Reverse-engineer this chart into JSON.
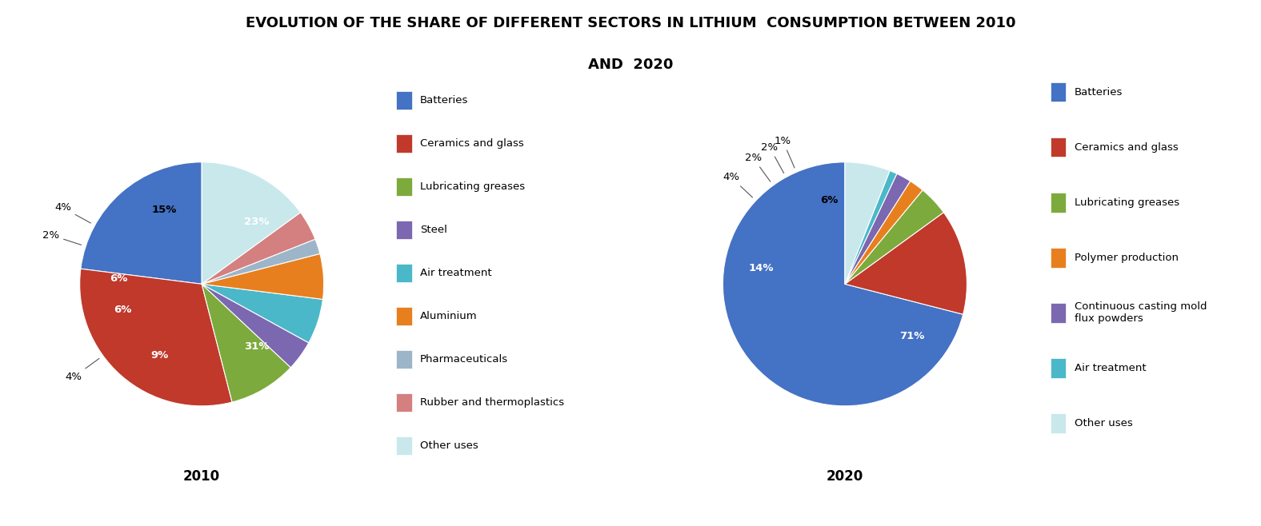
{
  "title_line1": "EVOLUTION OF THE SHARE OF DIFFERENT SECTORS IN LITHIUM  CONSUMPTION BETWEEN 2010",
  "title_line2": "AND  2020",
  "pie2010": {
    "labels": [
      "Batteries",
      "Ceramics and glass",
      "Lubricating greases",
      "Steel",
      "Air treatment",
      "Aluminium",
      "Pharmaceuticals",
      "Rubber and thermoplastics",
      "Other uses"
    ],
    "values": [
      23,
      31,
      9,
      4,
      6,
      6,
      2,
      4,
      15
    ],
    "colors": [
      "#4472c4",
      "#c0392b",
      "#7daa3c",
      "#7b68b0",
      "#4ab8c8",
      "#e87f1e",
      "#9db5c8",
      "#d48080",
      "#c8e8ec"
    ],
    "pct_labels": [
      "23%",
      "31%",
      "9%",
      "4%",
      "6%",
      "6%",
      "2%",
      "4%",
      "15%"
    ],
    "outside_indices": [
      3,
      6,
      7
    ]
  },
  "pie2020": {
    "labels": [
      "Batteries",
      "Ceramics and glass",
      "Lubricating greases",
      "Polymer production",
      "Continuous casting mold flux powders",
      "Air treatment",
      "Other uses"
    ],
    "values": [
      71,
      14,
      4,
      2,
      2,
      1,
      6
    ],
    "colors": [
      "#4472c4",
      "#c0392b",
      "#7daa3c",
      "#e87f1e",
      "#7b68b0",
      "#4ab8c8",
      "#c8e8ec"
    ],
    "pct_labels": [
      "71%",
      "14%",
      "4%",
      "2%",
      "2%",
      "1%",
      "6%"
    ],
    "outside_indices": [
      2,
      3,
      4,
      5
    ]
  },
  "legend2010_labels": [
    "Batteries",
    "Ceramics and glass",
    "Lubricating greases",
    "Steel",
    "Air treatment",
    "Aluminium",
    "Pharmaceuticals",
    "Rubber and thermoplastics",
    "Other uses"
  ],
  "legend2010_colors": [
    "#4472c4",
    "#c0392b",
    "#7daa3c",
    "#7b68b0",
    "#4ab8c8",
    "#e87f1e",
    "#9db5c8",
    "#d48080",
    "#c8e8ec"
  ],
  "legend2020_labels": [
    "Batteries",
    "Ceramics and glass",
    "Lubricating greases",
    "Polymer production",
    "Continuous casting mold\nflux powders",
    "Air treatment",
    "Other uses"
  ],
  "legend2020_colors": [
    "#4472c4",
    "#c0392b",
    "#7daa3c",
    "#e87f1e",
    "#7b68b0",
    "#4ab8c8",
    "#c8e8ec"
  ],
  "year2010": "2010",
  "year2020": "2020",
  "bg_color": "#ffffff"
}
